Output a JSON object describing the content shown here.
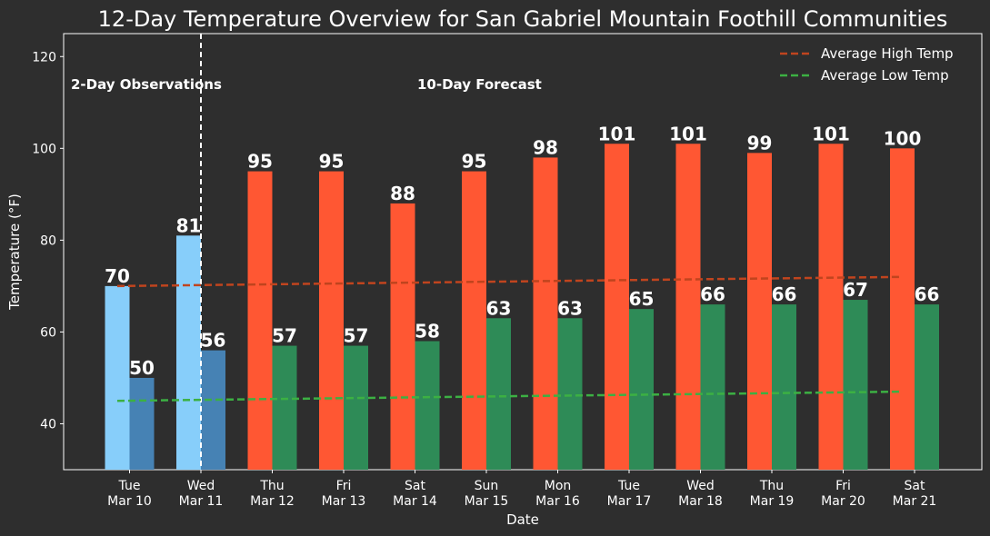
{
  "chart_data": {
    "type": "bar",
    "title": "12-Day Temperature Overview for San Gabriel Mountain Foothill Communities",
    "xlabel": "Date",
    "ylabel": "Temperature (°F)",
    "ylim": [
      30,
      125
    ],
    "yticks": [
      40,
      60,
      80,
      100,
      120
    ],
    "categories": [
      [
        "Tue",
        "Mar 10"
      ],
      [
        "Wed",
        "Mar 11"
      ],
      [
        "Thu",
        "Mar 12"
      ],
      [
        "Fri",
        "Mar 13"
      ],
      [
        "Sat",
        "Mar 14"
      ],
      [
        "Sun",
        "Mar 15"
      ],
      [
        "Mon",
        "Mar 16"
      ],
      [
        "Tue",
        "Mar 17"
      ],
      [
        "Wed",
        "Mar 18"
      ],
      [
        "Thu",
        "Mar 19"
      ],
      [
        "Fri",
        "Mar 20"
      ],
      [
        "Sat",
        "Mar 21"
      ]
    ],
    "observation_days": 2,
    "series": [
      {
        "role": "high",
        "values": [
          70,
          81,
          95,
          95,
          88,
          95,
          98,
          101,
          101,
          99,
          101,
          100
        ],
        "observed_color": "#87cefa",
        "forecast_color": "#ff5733"
      },
      {
        "role": "low",
        "values": [
          50,
          56,
          57,
          57,
          58,
          63,
          63,
          65,
          66,
          66,
          67,
          66
        ],
        "observed_color": "#4682b4",
        "forecast_color": "#2e8b57"
      }
    ],
    "trend_lines": [
      {
        "name": "Average High Temp",
        "start": 70,
        "end": 72,
        "color": "#c0441e"
      },
      {
        "name": "Average Low Temp",
        "start": 45,
        "end": 47,
        "color": "#3cb043"
      }
    ],
    "section_labels": {
      "observed": "2-Day Observations",
      "forecast": "10-Day Forecast"
    },
    "divider_after_index": 1,
    "legend_position": "top-right",
    "grid": false,
    "colors": {
      "background": "#2e2e2e",
      "axes": "#ffffff",
      "text": "#ffffff"
    }
  }
}
